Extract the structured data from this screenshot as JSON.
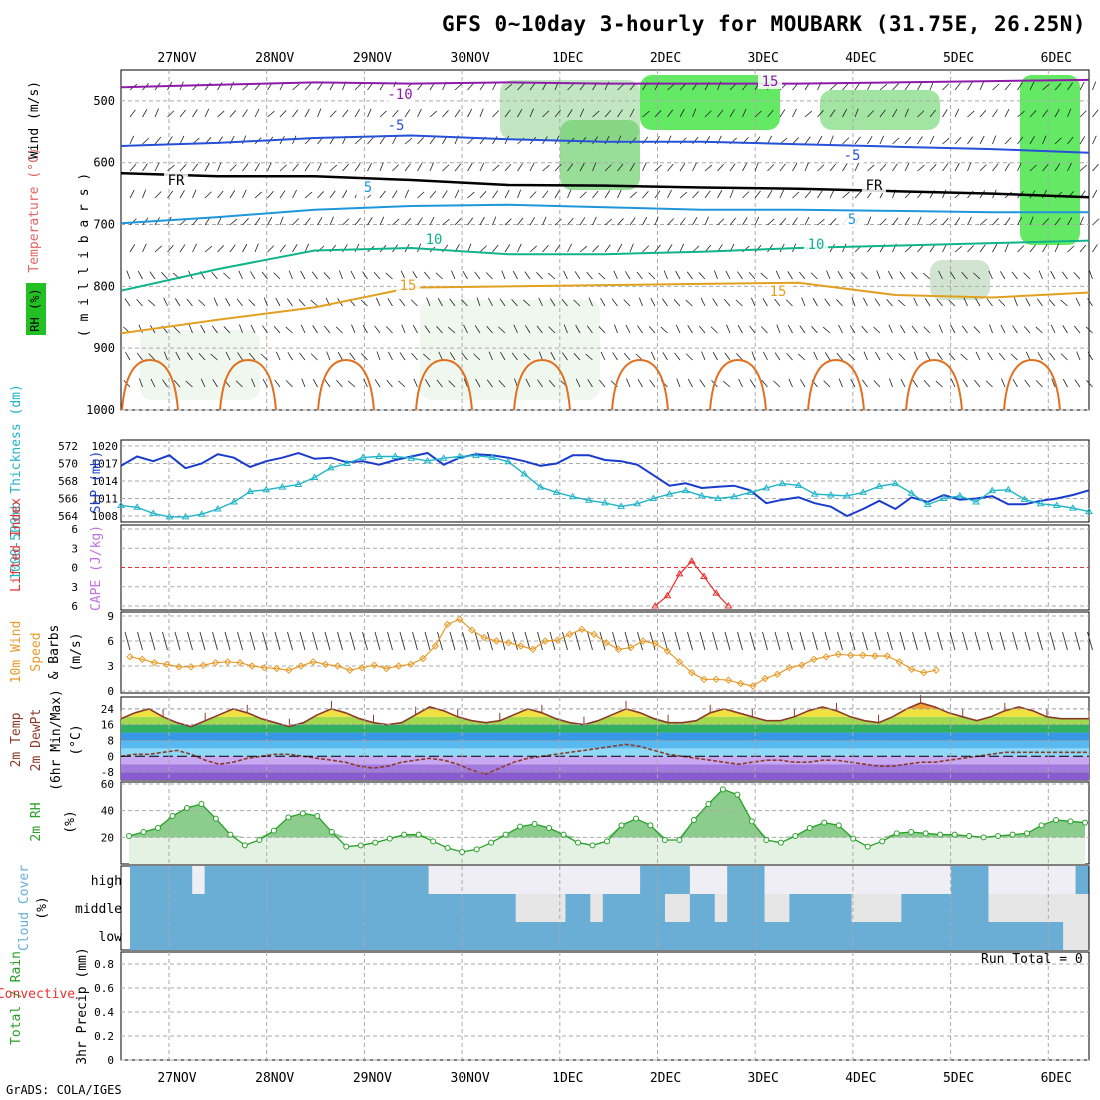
{
  "header": {
    "title": "GFS 0~10day 3-hourly for MOUBARK (31.75E, 26.25N)",
    "credit": "GrADS: COLA/IGES",
    "run_total": "Run Total = 0"
  },
  "chart_data": {
    "type": "meteogram",
    "dates": [
      "27NOV",
      "28NOV",
      "29NOV",
      "30NOV",
      "1DEC",
      "2DEC",
      "3DEC",
      "4DEC",
      "5DEC",
      "6DEC"
    ],
    "panels": [
      {
        "id": "upper-air",
        "type": "contour",
        "ylabels": [
          "Wind (m/s)",
          "Temperature (°C)",
          "RH (%)",
          "( m i l l i b a r s )"
        ],
        "yticks": [
          500,
          600,
          700,
          800,
          900,
          1000
        ],
        "ylim": [
          1000,
          450
        ],
        "temperature_contours": [
          {
            "label": "-10",
            "color": "#8d1aa8",
            "values": [
              478,
              474,
              470,
              472,
              470,
              472,
              472,
              472,
              470,
              468,
              466
            ]
          },
          {
            "label": "-5",
            "color": "#2650d8",
            "values": [
              573,
              568,
              560,
              556,
              562,
              566,
              566,
              570,
              574,
              578,
              584
            ]
          },
          {
            "label": "FR",
            "color": "#000000",
            "values": [
              617,
              622,
              622,
              628,
              636,
              637,
              640,
              642,
              646,
              650,
              656
            ]
          },
          {
            "label": "5",
            "color": "#1e96dc",
            "values": [
              698,
              688,
              676,
              670,
              668,
              672,
              676,
              676,
              678,
              680,
              680
            ]
          },
          {
            "label": "10",
            "color": "#10b48a",
            "values": [
              807,
              772,
              742,
              738,
              748,
              748,
              744,
              738,
              734,
              730,
              726
            ]
          },
          {
            "label": "15",
            "color": "#e2a020",
            "values": [
              876,
              854,
              834,
              802,
              800,
              798,
              796,
              794,
              814,
              818,
              810
            ]
          }
        ],
        "contour_labels": [
          "-10",
          "-5",
          "FR",
          "5",
          "10",
          "15",
          "-5",
          "FR",
          "5",
          "10",
          "15",
          "15"
        ]
      },
      {
        "id": "thickness-slp",
        "type": "line",
        "ylabel_left": "1000-500mb Thickness (dm)",
        "ylabel_right": "SLP (mb)",
        "yticks_left": [
          564,
          566,
          568,
          570,
          572
        ],
        "yticks_right": [
          1008,
          1011,
          1014,
          1017,
          1020
        ],
        "series": [
          {
            "name": "SLP (mb)",
            "color": "#1a3ccc",
            "axis": "right",
            "values": [
              1016.6,
              1018.2,
              1017.4,
              1018.4,
              1016.2,
              1017.0,
              1018.6,
              1018.0,
              1016.4,
              1017.4,
              1018.0,
              1018.8,
              1017.8,
              1018.0,
              1017.2,
              1017.4,
              1016.8,
              1017.6,
              1018.2,
              1018.8,
              1016.8,
              1018.0,
              1018.6,
              1018.4,
              1018.0,
              1017.4,
              1016.6,
              1017.0,
              1018.4,
              1018.4,
              1017.6,
              1017.4,
              1016.8,
              1015.0,
              1013.2,
              1013.6,
              1012.8,
              1013.0,
              1013.2,
              1012.4,
              1010.2,
              1010.8,
              1011.2,
              1010.2,
              1009.6,
              1008.0,
              1009.2,
              1010.6,
              1009.2,
              1011.2,
              1010.4,
              1011.6,
              1010.8,
              1011.0,
              1011.4,
              1010.0,
              1010.0,
              1010.6,
              1011.0,
              1011.6,
              1012.4
            ]
          },
          {
            "name": "1000-500mb Thickness (dm)",
            "color": "#20b4c8",
            "axis": "left",
            "values": [
              565.2,
              565.0,
              564.3,
              563.9,
              563.9,
              564.2,
              564.8,
              565.6,
              566.8,
              567.0,
              567.3,
              567.6,
              568.4,
              569.5,
              570.0,
              570.7,
              570.8,
              570.8,
              570.6,
              570.3,
              570.6,
              570.8,
              570.9,
              570.7,
              570.2,
              568.8,
              567.3,
              566.7,
              566.2,
              565.8,
              565.5,
              565.1,
              565.4,
              566.0,
              566.5,
              566.9,
              566.3,
              566.0,
              566.2,
              566.7,
              567.2,
              567.7,
              567.5,
              566.5,
              566.4,
              566.3,
              566.7,
              567.4,
              567.7,
              566.6,
              565.3,
              566.0,
              566.3,
              565.6,
              566.9,
              567.0,
              565.9,
              565.4,
              565.2,
              564.9,
              564.5
            ]
          }
        ]
      },
      {
        "id": "cape-li",
        "type": "line",
        "ylabel_left": "Lifted Index",
        "ylabel_right": "CAPE (J/kg)",
        "yticks_left": [
          -6,
          -3,
          0,
          3,
          6
        ],
        "ytick_labels_left": [
          "6",
          "3",
          "0",
          "3",
          "6"
        ],
        "ylim": [
          6,
          -6
        ],
        "series": [
          {
            "name": "Lifted Index",
            "color": "#e83030",
            "x_start": 43,
            "values": [
              6.0,
              4.4,
              1.0,
              -1.0,
              1.4,
              4.0,
              6.0
            ]
          }
        ]
      },
      {
        "id": "wind10m",
        "type": "line",
        "ylabel": "10m Wind Speed (m/s) & Barbs",
        "yticks": [
          0,
          3,
          6,
          9
        ],
        "ylim": [
          0,
          9
        ],
        "series": [
          {
            "name": "10m Wind Speed",
            "color": "#e89a28",
            "values": [
              4.1,
              3.8,
              3.4,
              3.2,
              2.9,
              2.9,
              3.1,
              3.4,
              3.5,
              3.4,
              3.0,
              2.8,
              2.7,
              2.5,
              3.0,
              3.5,
              3.2,
              3.0,
              2.5,
              2.8,
              3.1,
              2.7,
              3.0,
              3.2,
              3.9,
              5.4,
              8.0,
              8.6,
              7.3,
              6.4,
              6.0,
              5.8,
              5.4,
              5.0,
              6.0,
              6.1,
              6.8,
              7.4,
              6.8,
              5.8,
              5.0,
              5.2,
              6.0,
              5.7,
              4.8,
              3.5,
              2.2,
              1.4,
              1.4,
              1.3,
              0.9,
              0.6,
              1.5,
              2.0,
              2.8,
              3.1,
              3.8,
              4.1,
              4.4,
              4.3,
              4.3,
              4.2,
              4.2,
              3.5,
              2.6,
              2.2,
              2.5
            ]
          }
        ]
      },
      {
        "id": "temp2m",
        "type": "line",
        "ylabel": "2m Temp 2m DewPt (6hr Min/Max) (°C)",
        "yticks": [
          -8,
          0,
          8,
          16,
          24
        ],
        "ylim": [
          -12,
          30
        ],
        "series": [
          {
            "name": "2m Temp",
            "color": "#8b3a2a",
            "values": [
              19,
              22,
              24,
              20,
              17,
              15,
              18,
              21,
              24,
              22,
              19,
              17,
              15,
              17,
              21,
              24,
              22,
              19,
              17,
              16,
              17,
              21,
              25,
              23,
              20,
              18,
              17,
              18,
              21,
              24,
              22,
              19,
              17,
              16,
              18,
              21,
              24,
              22,
              19,
              17,
              17,
              18,
              22,
              24,
              22,
              20,
              18,
              18,
              20,
              23,
              25,
              23,
              20,
              18,
              17,
              20,
              24,
              27,
              25,
              22,
              20,
              18,
              20,
              23,
              25,
              23,
              20,
              19,
              19,
              19
            ]
          },
          {
            "name": "2m DewPt",
            "color": "#8b3a2a",
            "values": [
              0,
              1,
              1,
              2,
              3,
              1,
              -2,
              -4,
              -3,
              -1,
              0,
              1,
              1,
              0,
              -1,
              -2,
              -3,
              -5,
              -6,
              -5,
              -3,
              -2,
              -1,
              -2,
              -4,
              -7,
              -9,
              -6,
              -3,
              -1,
              0,
              1,
              2,
              3,
              4,
              5,
              6,
              5,
              3,
              1,
              0,
              -1,
              -2,
              -3,
              -4,
              -3,
              -2,
              -2,
              -3,
              -3,
              -2,
              -2,
              -3,
              -4,
              -5,
              -5,
              -4,
              -3,
              -3,
              -2,
              -1,
              0,
              1,
              2,
              2,
              2,
              2,
              2,
              2,
              2
            ]
          }
        ]
      },
      {
        "id": "rh2m",
        "type": "area",
        "ylabel": "2m RH (%)",
        "yticks": [
          20,
          40,
          60
        ],
        "ylim": [
          0,
          60
        ],
        "series": [
          {
            "name": "2m RH",
            "color": "#28a028",
            "values": [
              21,
              24,
              27,
              36,
              42,
              45,
              34,
              22,
              14,
              18,
              25,
              35,
              38,
              36,
              24,
              13,
              14,
              16,
              19,
              22,
              22,
              17,
              12,
              9,
              11,
              16,
              22,
              28,
              30,
              27,
              22,
              16,
              14,
              17,
              29,
              34,
              29,
              18,
              18,
              33,
              45,
              56,
              52,
              32,
              18,
              16,
              21,
              27,
              31,
              29,
              19,
              13,
              17,
              23,
              24,
              23,
              22,
              22,
              21,
              20,
              21,
              22,
              23,
              29,
              33,
              32,
              31
            ]
          }
        ]
      },
      {
        "id": "cloud",
        "type": "heatmap",
        "ylabel": "Cloud Cover (%)",
        "levels": [
          "high",
          "middle",
          "low"
        ]
      },
      {
        "id": "precip",
        "type": "bar",
        "ylabel_left": "Total / Rain",
        "ylabel_right": "Convective",
        "ylabel": "3hr Precip (mm)",
        "yticks": [
          0,
          0.2,
          0.4,
          0.6,
          0.8
        ],
        "ytick_labels": [
          "0",
          "0.2",
          "0.4",
          "0.6",
          "0.8"
        ],
        "ylim": [
          0,
          0.9
        ],
        "values": []
      }
    ]
  }
}
